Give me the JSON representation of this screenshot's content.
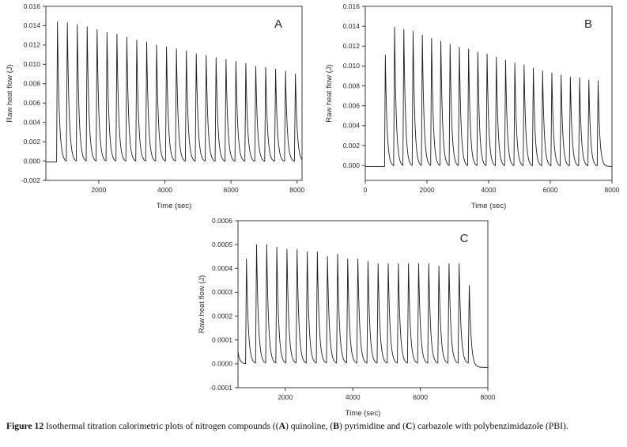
{
  "figure": {
    "caption_segments": [
      {
        "text": "Figure 12",
        "bold": true
      },
      {
        "text": "  Isothermal titration calorimetric plots of nitrogen compounds ((",
        "bold": false
      },
      {
        "text": "A",
        "bold": true
      },
      {
        "text": ") quinoline, (",
        "bold": false
      },
      {
        "text": "B",
        "bold": true
      },
      {
        "text": ") pyrimidine and (",
        "bold": false
      },
      {
        "text": "C",
        "bold": true
      },
      {
        "text": ") carbazole with polybenzimidazole (PBI).",
        "bold": false
      }
    ]
  },
  "chart_data": [
    {
      "type": "line",
      "panel_label": "A",
      "series_name": "quinoline + PBI",
      "xlabel": "Time (sec)",
      "ylabel": "Raw heat flow (J)",
      "xlim": [
        400,
        8150
      ],
      "ylim": [
        -0.002,
        0.016
      ],
      "xticks": [
        2000,
        4000,
        6000,
        8000
      ],
      "xtick_labels": [
        "2000",
        "4000",
        "6000",
        "8000"
      ],
      "ytick_values": [
        -0.002,
        0.0,
        0.002,
        0.004,
        0.006,
        0.008,
        0.01,
        0.012,
        0.014,
        0.016
      ],
      "ytick_labels": [
        "-0.002",
        "0.000",
        "0.002",
        "0.004",
        "0.006",
        "0.008",
        "0.010",
        "0.012",
        "0.014",
        "0.016"
      ],
      "grid": false,
      "line_color": "#1c1c1c",
      "baseline": -0.0001,
      "start_value": -0.0001,
      "rise_sec": 25,
      "decay_tau_sec": 55,
      "peak_times": [
        750,
        1050,
        1350,
        1650,
        1950,
        2250,
        2550,
        2850,
        3150,
        3450,
        3750,
        4050,
        4350,
        4650,
        4950,
        5250,
        5550,
        5850,
        6150,
        6450,
        6750,
        7050,
        7350,
        7650,
        7950
      ],
      "peak_heights": [
        0.0144,
        0.0143,
        0.0141,
        0.0139,
        0.0136,
        0.0133,
        0.0131,
        0.0128,
        0.0125,
        0.0123,
        0.012,
        0.0118,
        0.0116,
        0.0114,
        0.0111,
        0.0109,
        0.0107,
        0.0105,
        0.0103,
        0.0101,
        0.0098,
        0.0097,
        0.0095,
        0.0093,
        0.009
      ]
    },
    {
      "type": "line",
      "panel_label": "B",
      "series_name": "pyrimidine + PBI",
      "xlabel": "Time (sec)",
      "ylabel": "Raw heat flow (J)",
      "xlim": [
        0,
        8000
      ],
      "ylim": [
        -0.0015,
        0.016
      ],
      "xticks": [
        0,
        2000,
        4000,
        6000,
        8000
      ],
      "xtick_labels": [
        "0",
        "2000",
        "4000",
        "6000",
        "8000"
      ],
      "ytick_values": [
        0.0,
        0.002,
        0.004,
        0.006,
        0.008,
        0.01,
        0.012,
        0.014,
        0.016
      ],
      "ytick_labels": [
        "0.000",
        "0.002",
        "0.004",
        "0.006",
        "0.008",
        "0.010",
        "0.012",
        "0.014",
        "0.016"
      ],
      "grid": false,
      "line_color": "#1c1c1c",
      "baseline": -0.0001,
      "start_value": -0.0001,
      "rise_sec": 25,
      "decay_tau_sec": 55,
      "peak_times": [
        650,
        950,
        1250,
        1550,
        1850,
        2150,
        2450,
        2750,
        3050,
        3350,
        3650,
        3950,
        4250,
        4550,
        4850,
        5150,
        5450,
        5750,
        6050,
        6350,
        6650,
        6950,
        7250,
        7550
      ],
      "peak_heights": [
        0.0111,
        0.0139,
        0.0137,
        0.0135,
        0.0131,
        0.0128,
        0.0125,
        0.0122,
        0.0119,
        0.0117,
        0.0114,
        0.0112,
        0.0109,
        0.0106,
        0.0103,
        0.0101,
        0.0098,
        0.0095,
        0.0093,
        0.0091,
        0.0089,
        0.0088,
        0.0086,
        0.0085
      ]
    },
    {
      "type": "line",
      "panel_label": "C",
      "series_name": "carbazole + PBI",
      "xlabel": "Time (sec)",
      "ylabel": "Raw heat flow (J)",
      "xlim": [
        600,
        8000
      ],
      "ylim": [
        -0.0001,
        0.0006
      ],
      "xticks": [
        2000,
        4000,
        6000,
        8000
      ],
      "xtick_labels": [
        "2000",
        "4000",
        "6000",
        "8000"
      ],
      "ytick_values": [
        -0.0001,
        0.0,
        0.0001,
        0.0002,
        0.0003,
        0.0004,
        0.0005,
        0.0006
      ],
      "ytick_labels": [
        "-0.0001",
        "0.0000",
        "0.0001",
        "0.0002",
        "0.0003",
        "0.0004",
        "0.0005",
        "0.0006"
      ],
      "grid": false,
      "line_color": "#1c1c1c",
      "baseline": 0.0,
      "start_value": 5e-05,
      "tail_base": -1.5e-05,
      "rise_sec": 25,
      "decay_tau_sec": 55,
      "peak_times": [
        850,
        1150,
        1450,
        1750,
        2050,
        2350,
        2650,
        2950,
        3250,
        3550,
        3850,
        4150,
        4450,
        4750,
        5050,
        5350,
        5650,
        5950,
        6250,
        6550,
        6850,
        7150,
        7450
      ],
      "peak_heights": [
        0.00044,
        0.0005,
        0.0005,
        0.00049,
        0.00048,
        0.00048,
        0.00047,
        0.00047,
        0.00045,
        0.00046,
        0.00044,
        0.00044,
        0.00043,
        0.00042,
        0.00042,
        0.00042,
        0.00042,
        0.00042,
        0.00042,
        0.00041,
        0.00042,
        0.00042,
        0.00033
      ]
    }
  ]
}
